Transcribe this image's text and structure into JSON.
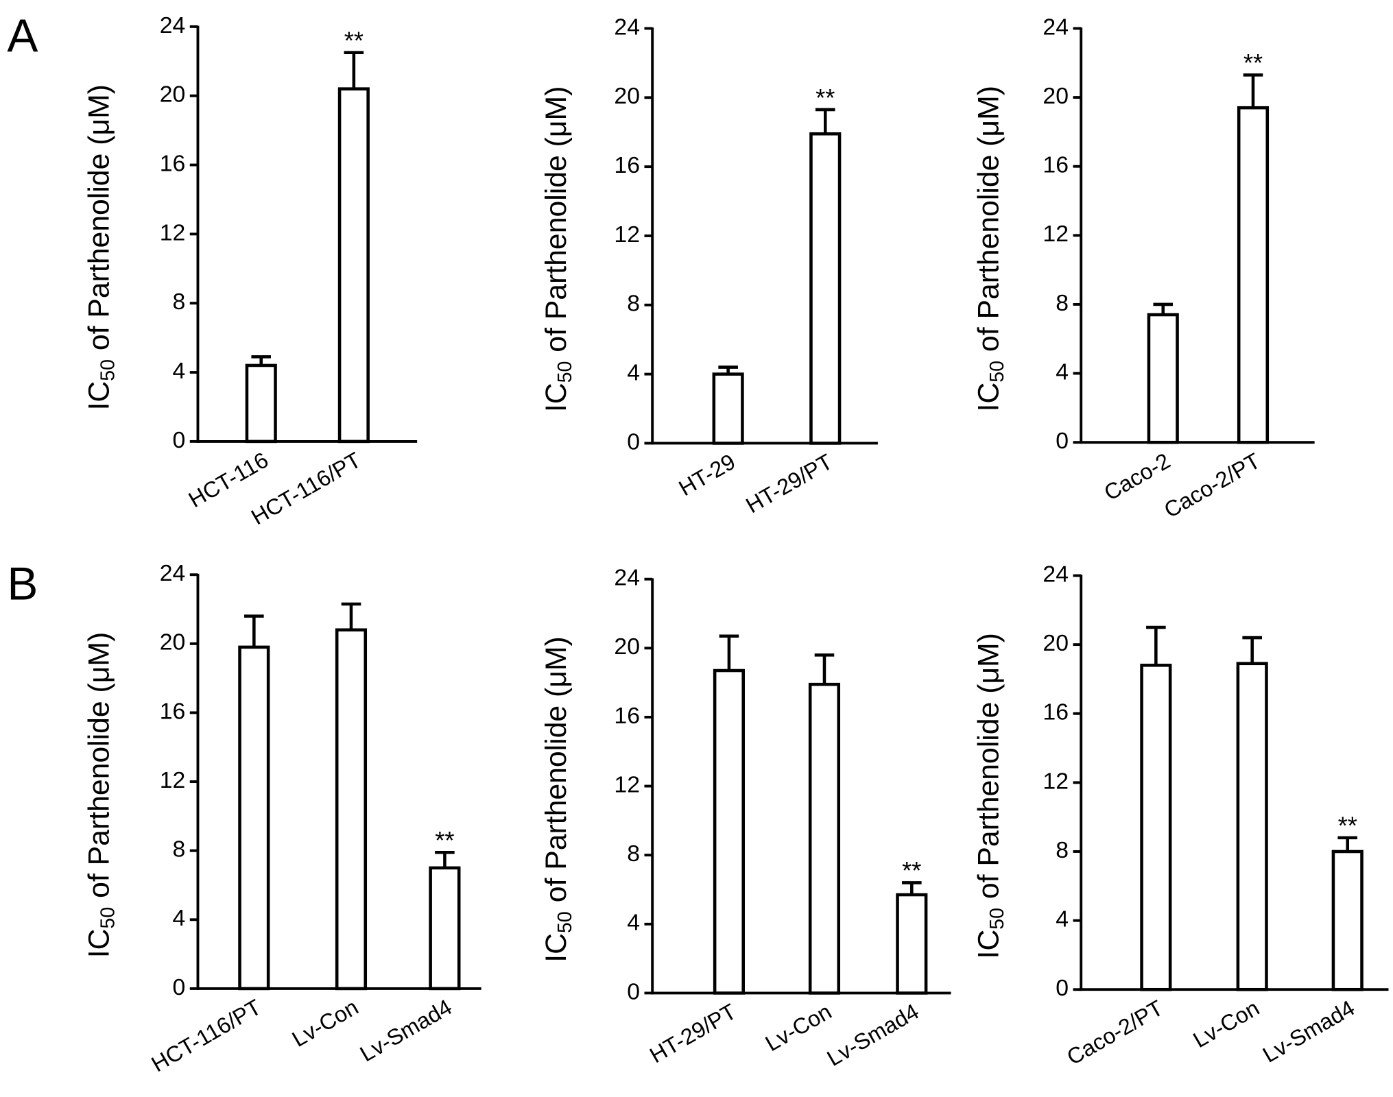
{
  "panel_labels": [
    "A",
    "B"
  ],
  "chart_data": [
    {
      "type": "bar",
      "categories": [
        "HCT-116",
        "HCT-116/PT"
      ],
      "values": [
        4.4,
        20.4
      ],
      "errors": [
        0.5,
        2.1
      ],
      "significance": [
        null,
        "**"
      ],
      "color": "#ffffff",
      "edge_color": "#000000",
      "ylim": [
        0,
        24
      ],
      "yticks": [
        0,
        4,
        8,
        12,
        16,
        20,
        24
      ],
      "y_label": {
        "text": "IC",
        "subscript": "50",
        "rest": "of Parthenolide (μM)"
      }
    },
    {
      "type": "bar",
      "categories": [
        "HT-29",
        "HT-29/PT"
      ],
      "values": [
        4.0,
        17.9
      ],
      "errors": [
        0.4,
        1.4
      ],
      "significance": [
        null,
        "**"
      ],
      "color": "#ffffff",
      "edge_color": "#000000",
      "ylim": [
        0,
        24
      ],
      "yticks": [
        0,
        4,
        8,
        12,
        16,
        20,
        24
      ],
      "y_label": {
        "text": "IC",
        "subscript": "50",
        "rest": "of Parthenolide (μM)"
      }
    },
    {
      "type": "bar",
      "categories": [
        "Caco-2",
        "Caco-2/PT"
      ],
      "values": [
        7.4,
        19.4
      ],
      "errors": [
        0.6,
        1.9
      ],
      "significance": [
        null,
        "**"
      ],
      "color": "#ffffff",
      "edge_color": "#000000",
      "ylim": [
        0,
        24
      ],
      "yticks": [
        0,
        4,
        8,
        12,
        16,
        20,
        24
      ],
      "y_label": {
        "text": "IC",
        "subscript": "50",
        "rest": "of Parthenolide (μM)"
      }
    },
    {
      "type": "bar",
      "categories": [
        "HCT-116/PT",
        "Lv-Con",
        "Lv-Smad4"
      ],
      "values": [
        19.8,
        20.8,
        7.0
      ],
      "errors": [
        1.8,
        1.5,
        0.9
      ],
      "significance": [
        null,
        null,
        "**"
      ],
      "color": "#ffffff",
      "edge_color": "#000000",
      "ylim": [
        0,
        24
      ],
      "yticks": [
        0,
        4,
        8,
        12,
        16,
        20,
        24
      ],
      "y_label": {
        "text": "IC",
        "subscript": "50",
        "rest": "of Parthenolide (μM)"
      }
    },
    {
      "type": "bar",
      "categories": [
        "HT-29/PT",
        "Lv-Con",
        "Lv-Smad4"
      ],
      "values": [
        18.7,
        17.9,
        5.7
      ],
      "errors": [
        2.0,
        1.7,
        0.7
      ],
      "significance": [
        null,
        null,
        "**"
      ],
      "color": "#ffffff",
      "edge_color": "#000000",
      "ylim": [
        0,
        24
      ],
      "yticks": [
        0,
        4,
        8,
        12,
        16,
        20,
        24
      ],
      "y_label": {
        "text": "IC",
        "subscript": "50",
        "rest": "of Parthenolide (μM)"
      }
    },
    {
      "type": "bar",
      "categories": [
        "Caco-2/PT",
        "Lv-Con",
        "Lv-Smad4"
      ],
      "values": [
        18.8,
        18.9,
        8.0
      ],
      "errors": [
        2.2,
        1.5,
        0.8
      ],
      "significance": [
        null,
        null,
        "**"
      ],
      "color": "#ffffff",
      "edge_color": "#000000",
      "ylim": [
        0,
        24
      ],
      "yticks": [
        0,
        4,
        8,
        12,
        16,
        20,
        24
      ],
      "y_label": {
        "text": "IC",
        "subscript": "50",
        "rest": "of Parthenolide (μM)"
      }
    }
  ]
}
